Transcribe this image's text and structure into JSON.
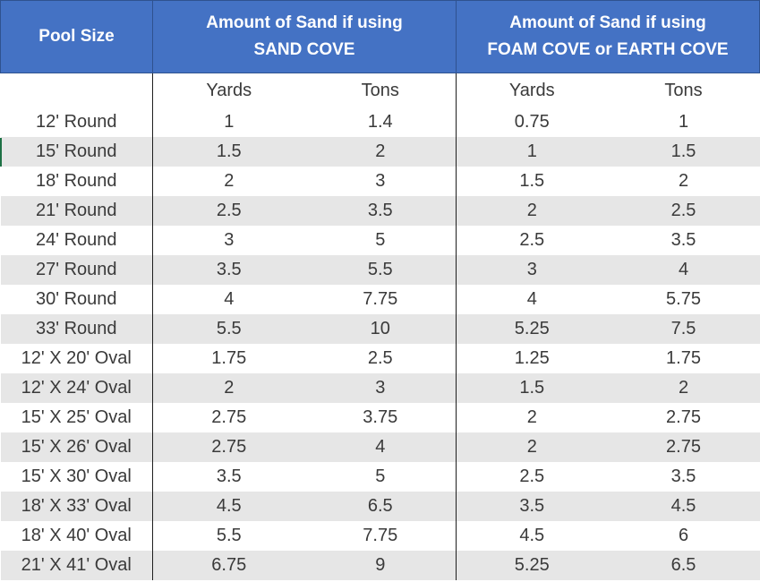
{
  "header": {
    "pool_size": "Pool Size",
    "sand_cove_line1": "Amount of Sand if using",
    "sand_cove_line2": "SAND COVE",
    "foam_cove_line1": "Amount of Sand if using",
    "foam_cove_line2": "FOAM COVE or EARTH COVE"
  },
  "subheader": {
    "blank": "",
    "yards_1": "Yards",
    "tons_1": "Tons",
    "yards_2": "Yards",
    "tons_2": "Tons"
  },
  "rows": [
    {
      "size": "12' Round",
      "sand_yards": "1",
      "sand_tons": "1.4",
      "foam_yards": "0.75",
      "foam_tons": "1"
    },
    {
      "size": "15' Round",
      "sand_yards": "1.5",
      "sand_tons": "2",
      "foam_yards": "1",
      "foam_tons": "1.5"
    },
    {
      "size": "18' Round",
      "sand_yards": "2",
      "sand_tons": "3",
      "foam_yards": "1.5",
      "foam_tons": "2"
    },
    {
      "size": "21' Round",
      "sand_yards": "2.5",
      "sand_tons": "3.5",
      "foam_yards": "2",
      "foam_tons": "2.5"
    },
    {
      "size": "24' Round",
      "sand_yards": "3",
      "sand_tons": "5",
      "foam_yards": "2.5",
      "foam_tons": "3.5"
    },
    {
      "size": "27' Round",
      "sand_yards": "3.5",
      "sand_tons": "5.5",
      "foam_yards": "3",
      "foam_tons": "4"
    },
    {
      "size": "30' Round",
      "sand_yards": "4",
      "sand_tons": "7.75",
      "foam_yards": "4",
      "foam_tons": "5.75"
    },
    {
      "size": "33' Round",
      "sand_yards": "5.5",
      "sand_tons": "10",
      "foam_yards": "5.25",
      "foam_tons": "7.5"
    },
    {
      "size": "12' X 20' Oval",
      "sand_yards": "1.75",
      "sand_tons": "2.5",
      "foam_yards": "1.25",
      "foam_tons": "1.75"
    },
    {
      "size": "12' X 24' Oval",
      "sand_yards": "2",
      "sand_tons": "3",
      "foam_yards": "1.5",
      "foam_tons": "2"
    },
    {
      "size": "15' X 25' Oval",
      "sand_yards": "2.75",
      "sand_tons": "3.75",
      "foam_yards": "2",
      "foam_tons": "2.75"
    },
    {
      "size": "15' X 26' Oval",
      "sand_yards": "2.75",
      "sand_tons": "4",
      "foam_yards": "2",
      "foam_tons": "2.75"
    },
    {
      "size": "15' X 30' Oval",
      "sand_yards": "3.5",
      "sand_tons": "5",
      "foam_yards": "2.5",
      "foam_tons": "3.5"
    },
    {
      "size": "18' X 33' Oval",
      "sand_yards": "4.5",
      "sand_tons": "6.5",
      "foam_yards": "3.5",
      "foam_tons": "4.5"
    },
    {
      "size": "18' X 40' Oval",
      "sand_yards": "5.5",
      "sand_tons": "7.75",
      "foam_yards": "4.5",
      "foam_tons": "6"
    },
    {
      "size": "21' X 41' Oval",
      "sand_yards": "6.75",
      "sand_tons": "9",
      "foam_yards": "5.25",
      "foam_tons": "6.5"
    }
  ],
  "colors": {
    "header_bg": "#4472c4",
    "header_text": "#ffffff",
    "band_gray": "#e6e6e6"
  }
}
